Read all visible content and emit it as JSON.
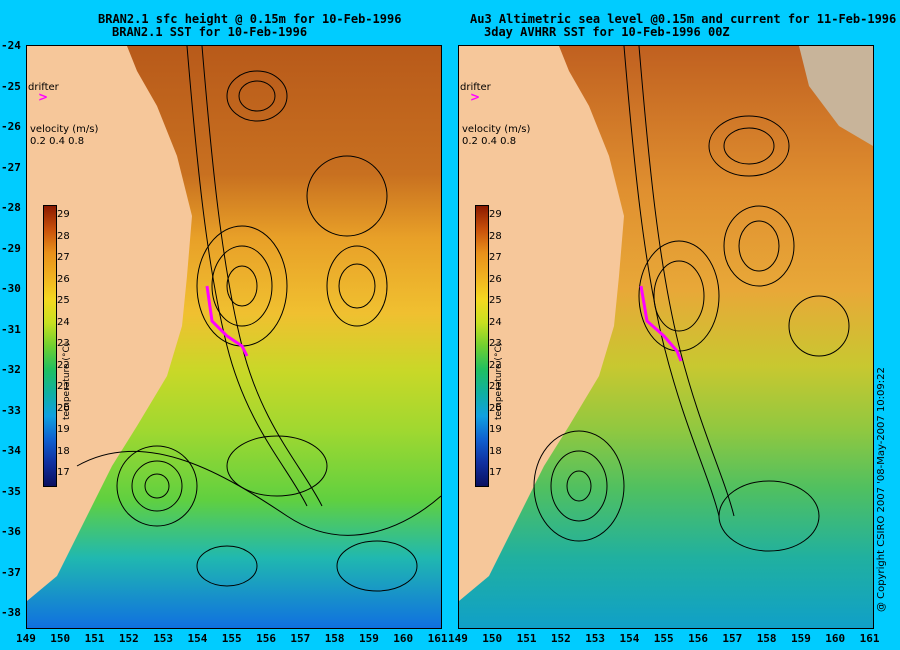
{
  "left": {
    "title_line1": "BRAN2.1 sfc height @ 0.15m for 10-Feb-1996",
    "title_line2": "BRAN2.1 SST for 10-Feb-1996"
  },
  "right": {
    "title_line1": "Au3 Altimetric sea level  @0.15m and current for 11-Feb-1996 00Z",
    "title_line2": "3day AVHRR SST for 10-Feb-1996 00Z"
  },
  "legend": {
    "drifter": "drifter",
    "velocity_label": "velocity (m/s)",
    "velocity_values": "0.2 0.4 0.8",
    "colorbar_title": "temperature (°C)",
    "colorbar_ticks": [
      "29",
      "28",
      "27",
      "26",
      "25",
      "24",
      "23",
      "22",
      "21",
      "20",
      "19",
      "18",
      "17"
    ],
    "colorbar_colors": [
      "#8b1a00",
      "#c8500a",
      "#e8901a",
      "#f0b020",
      "#f5d820",
      "#c8e020",
      "#70d030",
      "#20c060",
      "#10b0a0",
      "#10a0e0",
      "#1060d0",
      "#1030a0",
      "#0a1060"
    ]
  },
  "axes": {
    "y_ticks": [
      "-24",
      "-25",
      "-26",
      "-27",
      "-28",
      "-29",
      "-30",
      "-31",
      "-32",
      "-33",
      "-34",
      "-35",
      "-36",
      "-37",
      "-38"
    ],
    "x_ticks": [
      "149",
      "150",
      "151",
      "152",
      "153",
      "154",
      "155",
      "156",
      "157",
      "158",
      "159",
      "160",
      "161"
    ]
  },
  "copyright": "@ Copyright CSIRO 2007  '08-May-2007 10:09:22",
  "colors": {
    "background": "#00ccff",
    "land": "#f6c79a",
    "drifter": "#ff00ff"
  }
}
